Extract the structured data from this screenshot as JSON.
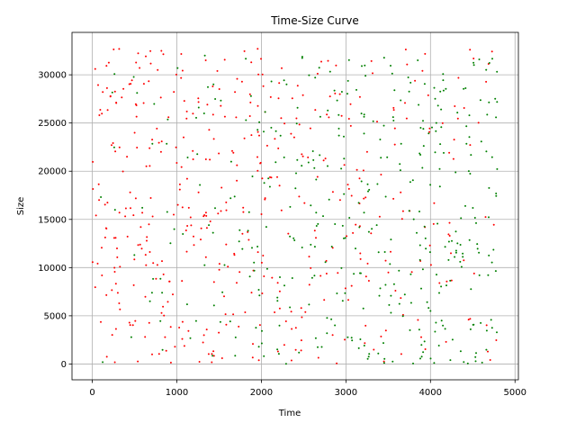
{
  "chart_data": {
    "type": "scatter",
    "title": "Time-Size Curve",
    "xlabel": "Time",
    "ylabel": "Size",
    "xlim": [
      -240,
      5040
    ],
    "ylim": [
      -1640,
      34400
    ],
    "xticks": [
      0,
      1000,
      2000,
      3000,
      4000,
      5000
    ],
    "yticks": [
      0,
      5000,
      10000,
      15000,
      20000,
      25000,
      30000
    ],
    "xtick_labels": [
      "0",
      "1000",
      "2000",
      "3000",
      "4000",
      "5000"
    ],
    "ytick_labels": [
      "0",
      "5000",
      "10000",
      "15000",
      "20000",
      "25000",
      "30000"
    ],
    "grid": true,
    "series": [
      {
        "color": "#ff0000",
        "points_per_band": [
          60,
          58,
          54,
          50,
          45,
          40,
          36,
          32,
          28,
          24,
          20,
          16
        ],
        "x_range": [
          0,
          4800
        ],
        "y_range": [
          0,
          32767
        ],
        "note_visible": "red points densest at low Time, thinning toward high Time"
      },
      {
        "color": "#008000",
        "points_per_band": [
          6,
          10,
          14,
          20,
          26,
          32,
          38,
          42,
          46,
          50,
          54,
          58
        ],
        "x_range": [
          0,
          4800
        ],
        "y_range": [
          0,
          32767
        ]
      }
    ]
  }
}
